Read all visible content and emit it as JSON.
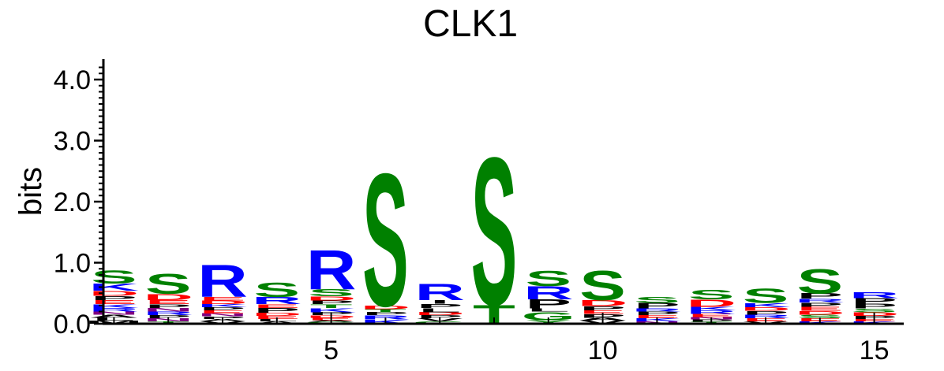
{
  "chart_data": {
    "type": "sequence-logo",
    "title": "CLK1",
    "ylabel": "bits",
    "ylim": [
      0,
      4.3
    ],
    "xlim": [
      0.5,
      15.5
    ],
    "y_ticks": [
      {
        "value": 0.0,
        "label": "0.0"
      },
      {
        "value": 1.0,
        "label": "1.0"
      },
      {
        "value": 2.0,
        "label": "2.0"
      },
      {
        "value": 3.0,
        "label": "3.0"
      },
      {
        "value": 4.0,
        "label": "4.0"
      }
    ],
    "x_ticks": [
      {
        "value": 5,
        "label": "5"
      },
      {
        "value": 10,
        "label": "10"
      },
      {
        "value": 15,
        "label": "15"
      }
    ],
    "colors": {
      "S": "#008000",
      "T": "#008000",
      "G": "#008000",
      "Y": "#008000",
      "R": "#0000ff",
      "K": "#0000ff",
      "H": "#0000ff",
      "D": "#ff0000",
      "E": "#ff0000",
      "P": "#000000",
      "L": "#000000",
      "I": "#000000",
      "V": "#000000",
      "A": "#000000",
      "M": "#000000",
      "F": "#000000",
      "W": "#000000",
      "N": "#800080",
      "Q": "#800080"
    },
    "positions": [
      {
        "position": 1,
        "stack": [
          {
            "letter": "M",
            "height": 0.05
          },
          {
            "letter": "L",
            "height": 0.05
          },
          {
            "letter": "A",
            "height": 0.05
          },
          {
            "letter": "N",
            "height": 0.05
          },
          {
            "letter": "R",
            "height": 0.06
          },
          {
            "letter": "K",
            "height": 0.06
          },
          {
            "letter": "E",
            "height": 0.07
          },
          {
            "letter": "P",
            "height": 0.07
          },
          {
            "letter": "D",
            "height": 0.08
          },
          {
            "letter": "K",
            "height": 0.12
          },
          {
            "letter": "S",
            "height": 0.22
          }
        ]
      },
      {
        "position": 2,
        "stack": [
          {
            "letter": "T",
            "height": 0.04
          },
          {
            "letter": "N",
            "height": 0.05
          },
          {
            "letter": "P",
            "height": 0.05
          },
          {
            "letter": "R",
            "height": 0.06
          },
          {
            "letter": "N",
            "height": 0.06
          },
          {
            "letter": "P",
            "height": 0.06
          },
          {
            "letter": "E",
            "height": 0.07
          },
          {
            "letter": "D",
            "height": 0.1
          },
          {
            "letter": "S",
            "height": 0.33
          }
        ]
      },
      {
        "position": 3,
        "stack": [
          {
            "letter": "V",
            "height": 0.04
          },
          {
            "letter": "A",
            "height": 0.04
          },
          {
            "letter": "P",
            "height": 0.04
          },
          {
            "letter": "N",
            "height": 0.05
          },
          {
            "letter": "E",
            "height": 0.05
          },
          {
            "letter": "P",
            "height": 0.05
          },
          {
            "letter": "K",
            "height": 0.05
          },
          {
            "letter": "D",
            "height": 0.06
          },
          {
            "letter": "E",
            "height": 0.06
          },
          {
            "letter": "R",
            "height": 0.54
          }
        ]
      },
      {
        "position": 4,
        "stack": [
          {
            "letter": "A",
            "height": 0.04
          },
          {
            "letter": "L",
            "height": 0.04
          },
          {
            "letter": "E",
            "height": 0.05
          },
          {
            "letter": "D",
            "height": 0.05
          },
          {
            "letter": "P",
            "height": 0.08
          },
          {
            "letter": "E",
            "height": 0.06
          },
          {
            "letter": "R",
            "height": 0.12
          },
          {
            "letter": "S",
            "height": 0.24
          }
        ]
      },
      {
        "position": 5,
        "stack": [
          {
            "letter": "G",
            "height": 0.03
          },
          {
            "letter": "A",
            "height": 0.03
          },
          {
            "letter": "E",
            "height": 0.04
          },
          {
            "letter": "D",
            "height": 0.04
          },
          {
            "letter": "P",
            "height": 0.05
          },
          {
            "letter": "K",
            "height": 0.07
          },
          {
            "letter": "T",
            "height": 0.06
          },
          {
            "letter": "P",
            "height": 0.06
          },
          {
            "letter": "D",
            "height": 0.07
          },
          {
            "letter": "S",
            "height": 0.12
          },
          {
            "letter": "R",
            "height": 0.66
          }
        ]
      },
      {
        "position": 6,
        "stack": [
          {
            "letter": "K",
            "height": 0.07
          },
          {
            "letter": "R",
            "height": 0.07
          },
          {
            "letter": "P",
            "height": 0.05
          },
          {
            "letter": "T",
            "height": 0.05
          },
          {
            "letter": "D",
            "height": 0.06
          },
          {
            "letter": "S",
            "height": 2.22
          }
        ]
      },
      {
        "position": 7,
        "stack": [
          {
            "letter": "G",
            "height": 0.04
          },
          {
            "letter": "V",
            "height": 0.05
          },
          {
            "letter": "P",
            "height": 0.05
          },
          {
            "letter": "D",
            "height": 0.05
          },
          {
            "letter": "L",
            "height": 0.07
          },
          {
            "letter": "P",
            "height": 0.07
          },
          {
            "letter": "I",
            "height": 0.06
          },
          {
            "letter": "R",
            "height": 0.27
          }
        ]
      },
      {
        "position": 8,
        "stack": [
          {
            "letter": "T",
            "height": 0.32
          },
          {
            "letter": "S",
            "height": 2.47
          }
        ]
      },
      {
        "position": 9,
        "stack": [
          {
            "letter": "Y",
            "height": 0.06
          },
          {
            "letter": "G",
            "height": 0.14
          },
          {
            "letter": "L",
            "height": 0.05
          },
          {
            "letter": "P",
            "height": 0.15
          },
          {
            "letter": "R",
            "height": 0.22
          },
          {
            "letter": "S",
            "height": 0.26
          }
        ]
      },
      {
        "position": 10,
        "stack": [
          {
            "letter": "V",
            "height": 0.05
          },
          {
            "letter": "A",
            "height": 0.05
          },
          {
            "letter": "P",
            "height": 0.06
          },
          {
            "letter": "E",
            "height": 0.06
          },
          {
            "letter": "P",
            "height": 0.07
          },
          {
            "letter": "D",
            "height": 0.1
          },
          {
            "letter": "S",
            "height": 0.5
          }
        ]
      },
      {
        "position": 11,
        "stack": [
          {
            "letter": "N",
            "height": 0.04
          },
          {
            "letter": "K",
            "height": 0.05
          },
          {
            "letter": "E",
            "height": 0.05
          },
          {
            "letter": "P",
            "height": 0.06
          },
          {
            "letter": "R",
            "height": 0.05
          },
          {
            "letter": "P",
            "height": 0.09
          },
          {
            "letter": "S",
            "height": 0.1
          }
        ]
      },
      {
        "position": 12,
        "stack": [
          {
            "letter": "T",
            "height": 0.03
          },
          {
            "letter": "P",
            "height": 0.04
          },
          {
            "letter": "N",
            "height": 0.04
          },
          {
            "letter": "E",
            "height": 0.05
          },
          {
            "letter": "R",
            "height": 0.06
          },
          {
            "letter": "K",
            "height": 0.06
          },
          {
            "letter": "D",
            "height": 0.12
          },
          {
            "letter": "S",
            "height": 0.16
          }
        ]
      },
      {
        "position": 13,
        "stack": [
          {
            "letter": "V",
            "height": 0.04
          },
          {
            "letter": "E",
            "height": 0.05
          },
          {
            "letter": "R",
            "height": 0.06
          },
          {
            "letter": "P",
            "height": 0.06
          },
          {
            "letter": "D",
            "height": 0.06
          },
          {
            "letter": "K",
            "height": 0.07
          },
          {
            "letter": "S",
            "height": 0.24
          }
        ]
      },
      {
        "position": 14,
        "stack": [
          {
            "letter": "K",
            "height": 0.04
          },
          {
            "letter": "E",
            "height": 0.05
          },
          {
            "letter": "S",
            "height": 0.06
          },
          {
            "letter": "D",
            "height": 0.06
          },
          {
            "letter": "E",
            "height": 0.07
          },
          {
            "letter": "P",
            "height": 0.07
          },
          {
            "letter": "R",
            "height": 0.06
          },
          {
            "letter": "P",
            "height": 0.09
          },
          {
            "letter": "S",
            "height": 0.41
          }
        ]
      },
      {
        "position": 15,
        "stack": [
          {
            "letter": "K",
            "height": 0.04
          },
          {
            "letter": "E",
            "height": 0.04
          },
          {
            "letter": "P",
            "height": 0.05
          },
          {
            "letter": "D",
            "height": 0.06
          },
          {
            "letter": "S",
            "height": 0.06
          },
          {
            "letter": "P",
            "height": 0.08
          },
          {
            "letter": "P",
            "height": 0.09
          },
          {
            "letter": "R",
            "height": 0.1
          }
        ]
      }
    ]
  }
}
